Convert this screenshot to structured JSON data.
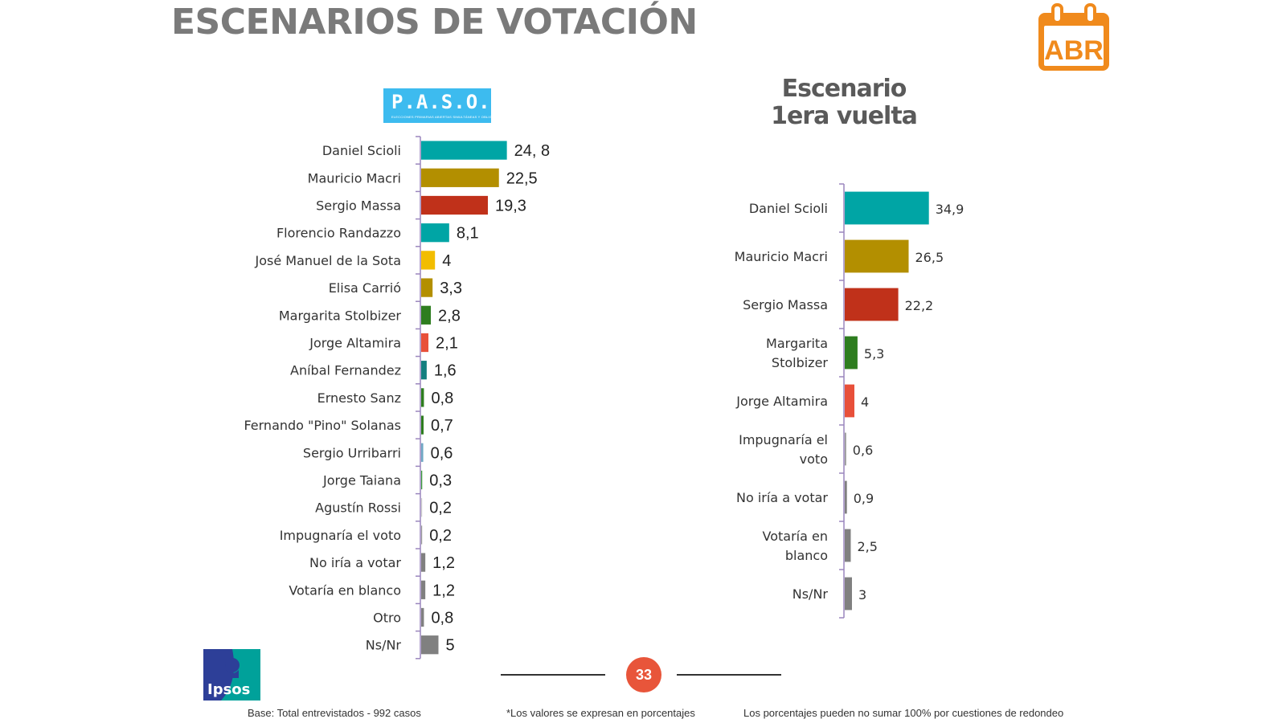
{
  "header": {
    "title": "ESCENARIOS DE VOTACIÓN",
    "month_badge": "ABR",
    "paso_logo": "P.A.S.O.",
    "paso_logo_small": "ELECCIONES PRIMARIAS ABIERTAS SIMULTÁNEAS Y OBLIGATORIAS",
    "scenario_title_line1": "Escenario",
    "scenario_title_line2": "1era vuelta"
  },
  "chart_data": [
    {
      "type": "bar",
      "orientation": "horizontal",
      "title": "P.A.S.O.",
      "xlabel": "",
      "ylabel": "",
      "xlim": [
        0,
        35
      ],
      "grid": false,
      "categories": [
        "Daniel Scioli",
        "Mauricio Macri",
        "Sergio Massa",
        "Florencio Randazzo",
        "José Manuel de la Sota",
        "Elisa Carrió",
        "Margarita Stolbizer",
        "Jorge Altamira",
        "Aníbal Fernandez",
        "Ernesto Sanz",
        "Fernando \"Pino\" Solanas",
        "Sergio Urribarri",
        "Jorge Taiana",
        "Agustín Rossi",
        "Impugnaría el voto",
        "No iría a votar",
        "Votaría en blanco",
        "Otro",
        "Ns/Nr"
      ],
      "values": [
        24.8,
        22.5,
        19.3,
        8.1,
        4,
        3.3,
        2.8,
        2.1,
        1.6,
        0.8,
        0.7,
        0.6,
        0.3,
        0.2,
        0.2,
        1.2,
        1.2,
        0.8,
        5
      ],
      "value_labels": [
        "24, 8",
        "22,5",
        "19,3",
        "8,1",
        "4",
        "3,3",
        "2,8",
        "2,1",
        "1,6",
        "0,8",
        "0,7",
        "0,6",
        "0,3",
        "0,2",
        "0,2",
        "1,2",
        "1,2",
        "0,8",
        "5"
      ],
      "colors": [
        "#00a5a5",
        "#b38f00",
        "#c0311a",
        "#00a5a5",
        "#f2bd00",
        "#b38f00",
        "#2e7d1f",
        "#e8503a",
        "#147f7f",
        "#2e7d1f",
        "#2e7d1f",
        "#6fa8c4",
        "#3c9a3c",
        "#cccccc",
        "#9a9a9a",
        "#808080",
        "#808080",
        "#808080",
        "#808080"
      ]
    },
    {
      "type": "bar",
      "orientation": "horizontal",
      "title": "Escenario 1era vuelta",
      "xlabel": "",
      "ylabel": "",
      "xlim": [
        0,
        35
      ],
      "grid": false,
      "categories": [
        "Daniel Scioli",
        "Mauricio Macri",
        "Sergio Massa",
        "Margarita Stolbizer",
        "Jorge Altamira",
        "Impugnaría el voto",
        "No iría a votar",
        "Votaría en blanco",
        "Ns/Nr"
      ],
      "category_lines": [
        [
          "Daniel Scioli"
        ],
        [
          "Mauricio Macri"
        ],
        [
          "Sergio Massa"
        ],
        [
          "Margarita",
          "Stolbizer"
        ],
        [
          "Jorge Altamira"
        ],
        [
          "Impugnaría el",
          "voto"
        ],
        [
          "No iría a votar"
        ],
        [
          "Votaría en",
          "blanco"
        ],
        [
          "Ns/Nr"
        ]
      ],
      "values": [
        34.9,
        26.5,
        22.2,
        5.3,
        4,
        0.6,
        0.9,
        2.5,
        3
      ],
      "value_labels": [
        "34,9",
        "26,5",
        "22,2",
        "5,3",
        "4",
        "0,6",
        "0,9",
        "2,5",
        "3"
      ],
      "colors": [
        "#00a5a5",
        "#b38f00",
        "#c0311a",
        "#2e7d1f",
        "#e8503a",
        "#9a9a9a",
        "#808080",
        "#808080",
        "#808080"
      ]
    }
  ],
  "footer": {
    "base": "Base: Total entrevistados - 992 casos",
    "note_values": "*Los valores se expresan en porcentajes",
    "note_rounding": "Los porcentajes pueden no sumar 100% por cuestiones de redondeo",
    "page_number": "33",
    "brand": "Ipsos"
  }
}
